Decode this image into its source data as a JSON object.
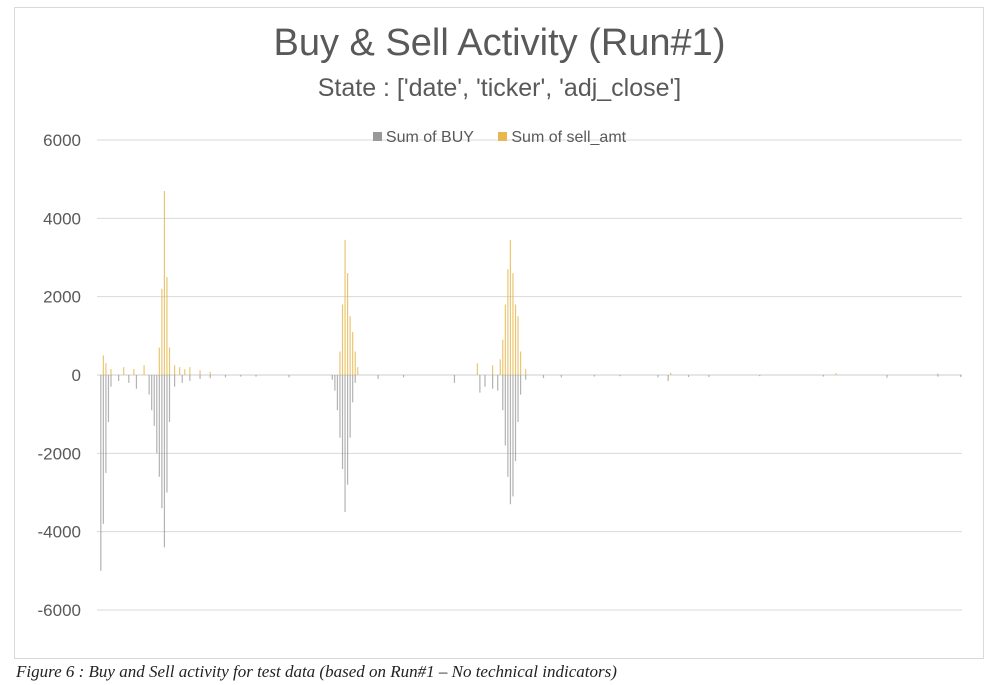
{
  "chart_data": {
    "type": "bar",
    "title": "Buy & Sell Activity (Run#1)",
    "subtitle": "State : ['date', 'ticker', 'adj_close']",
    "ylim": [
      -6000,
      6000
    ],
    "yticks": [
      6000,
      4000,
      2000,
      0,
      -2000,
      -4000,
      -6000
    ],
    "grid": true,
    "legend_position": "top",
    "x_count": 340,
    "series": [
      {
        "name": "Sum of BUY",
        "color": "#999999",
        "points": [
          [
            1,
            -5000
          ],
          [
            2,
            -3800
          ],
          [
            3,
            -2500
          ],
          [
            4,
            -1200
          ],
          [
            5,
            -300
          ],
          [
            8,
            -150
          ],
          [
            12,
            -200
          ],
          [
            15,
            -350
          ],
          [
            20,
            -500
          ],
          [
            21,
            -900
          ],
          [
            22,
            -1300
          ],
          [
            23,
            -2000
          ],
          [
            24,
            -2600
          ],
          [
            25,
            -3400
          ],
          [
            26,
            -4400
          ],
          [
            27,
            -3000
          ],
          [
            28,
            -1200
          ],
          [
            30,
            -300
          ],
          [
            33,
            -200
          ],
          [
            36,
            -150
          ],
          [
            40,
            -100
          ],
          [
            44,
            -80
          ],
          [
            50,
            -60
          ],
          [
            56,
            -40
          ],
          [
            62,
            -40
          ],
          [
            75,
            -60
          ],
          [
            92,
            -120
          ],
          [
            93,
            -400
          ],
          [
            94,
            -900
          ],
          [
            95,
            -1600
          ],
          [
            96,
            -2400
          ],
          [
            97,
            -3500
          ],
          [
            98,
            -2800
          ],
          [
            99,
            -1600
          ],
          [
            100,
            -700
          ],
          [
            101,
            -200
          ],
          [
            110,
            -100
          ],
          [
            120,
            -60
          ],
          [
            140,
            -200
          ],
          [
            150,
            -450
          ],
          [
            152,
            -300
          ],
          [
            155,
            -350
          ],
          [
            157,
            -400
          ],
          [
            159,
            -900
          ],
          [
            160,
            -1800
          ],
          [
            161,
            -2600
          ],
          [
            162,
            -3300
          ],
          [
            163,
            -3100
          ],
          [
            164,
            -2200
          ],
          [
            165,
            -1200
          ],
          [
            166,
            -500
          ],
          [
            168,
            -120
          ],
          [
            175,
            -80
          ],
          [
            182,
            -60
          ],
          [
            195,
            -40
          ],
          [
            205,
            -30
          ],
          [
            220,
            -60
          ],
          [
            224,
            -150
          ],
          [
            232,
            -50
          ],
          [
            240,
            -50
          ],
          [
            260,
            -30
          ],
          [
            285,
            -40
          ],
          [
            310,
            -70
          ],
          [
            330,
            -40
          ],
          [
            339,
            -50
          ]
        ]
      },
      {
        "name": "Sum of  sell_amt",
        "color": "#E6B84F",
        "points": [
          [
            2,
            500
          ],
          [
            3,
            300
          ],
          [
            5,
            150
          ],
          [
            10,
            200
          ],
          [
            14,
            150
          ],
          [
            18,
            250
          ],
          [
            24,
            700
          ],
          [
            25,
            2200
          ],
          [
            26,
            4700
          ],
          [
            27,
            2500
          ],
          [
            28,
            700
          ],
          [
            30,
            250
          ],
          [
            32,
            200
          ],
          [
            34,
            150
          ],
          [
            36,
            200
          ],
          [
            40,
            120
          ],
          [
            44,
            80
          ],
          [
            95,
            600
          ],
          [
            96,
            1800
          ],
          [
            97,
            3450
          ],
          [
            98,
            2600
          ],
          [
            99,
            1500
          ],
          [
            100,
            1100
          ],
          [
            101,
            600
          ],
          [
            102,
            200
          ],
          [
            149,
            300
          ],
          [
            155,
            250
          ],
          [
            158,
            400
          ],
          [
            159,
            900
          ],
          [
            160,
            1800
          ],
          [
            161,
            2700
          ],
          [
            162,
            3450
          ],
          [
            163,
            2600
          ],
          [
            164,
            1800
          ],
          [
            165,
            1500
          ],
          [
            166,
            600
          ],
          [
            168,
            150
          ],
          [
            225,
            60
          ],
          [
            290,
            50
          ],
          [
            330,
            40
          ]
        ]
      }
    ]
  },
  "caption": "Figure 6 : Buy and Sell activity for test data (based on Run#1 – No technical indicators)"
}
